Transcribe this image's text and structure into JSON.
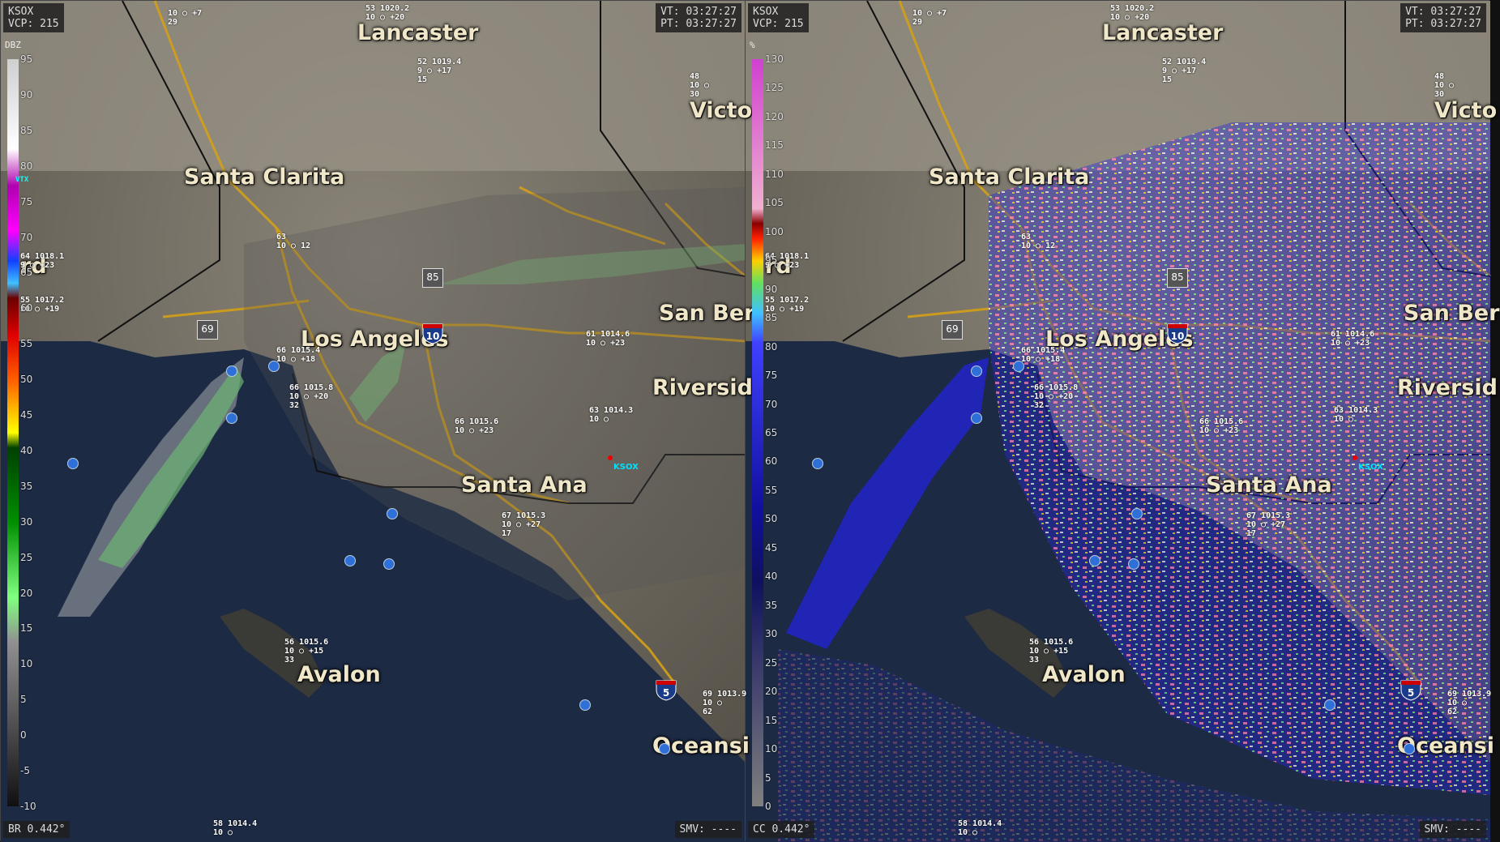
{
  "left_pane": {
    "radar": "KSOX",
    "vcp": "VCP: 215",
    "vt": "VT: 03:27:27",
    "pt": "PT: 03:27:27",
    "product": "BR 0.442°",
    "smv": "SMV: ----",
    "legend_unit": "DBZ",
    "legend_ticks": [
      "95",
      "90",
      "85",
      "80",
      "75",
      "70",
      "65",
      "60",
      "55",
      "50",
      "45",
      "40",
      "35",
      "30",
      "25",
      "20",
      "15",
      "10",
      "5",
      "0",
      "-5",
      "-10"
    ],
    "legend_marker": "VTX"
  },
  "right_pane": {
    "radar": "KSOX",
    "vcp": "VCP: 215",
    "vt": "VT: 03:27:27",
    "pt": "PT: 03:27:27",
    "product": "CC 0.442°",
    "smv": "SMV: ----",
    "legend_unit": "%",
    "legend_ticks": [
      "130",
      "125",
      "120",
      "115",
      "110",
      "105",
      "100",
      "95",
      "90",
      "85",
      "80",
      "75",
      "70",
      "65",
      "60",
      "55",
      "50",
      "45",
      "40",
      "35",
      "30",
      "25",
      "20",
      "15",
      "10",
      "5",
      "0"
    ]
  },
  "cities": {
    "lancaster": "Lancaster",
    "santa_clarita": "Santa Clarita",
    "los_angeles": "Los Angeles",
    "san_bernardino": "San Ber",
    "riverside": "Riversid",
    "santa_ana": "Santa Ana",
    "avalon": "Avalon",
    "victorville": "Victo",
    "oceanside": "Oceansi",
    "oxnard_partial": "rd"
  },
  "site_label": "KSOX",
  "highways": {
    "i10": "10",
    "i5": "5",
    "sr69": "69",
    "sr85": "85"
  },
  "observations": [
    {
      "id": "obs-lancaster",
      "lines": [
        "53 1020.2",
        "10  ○  +20"
      ]
    },
    {
      "id": "obs-palmdale",
      "lines": [
        "52 1019.4",
        "9  ○ +17",
        "15"
      ]
    },
    {
      "id": "obs-top",
      "lines": [
        "10 ○ +7",
        "29"
      ]
    },
    {
      "id": "obs-victorville",
      "lines": [
        "48",
        "10  ○",
        "30"
      ]
    },
    {
      "id": "obs-oxnard",
      "lines": [
        "64 1018.1",
        "9 ○ +23"
      ]
    },
    {
      "id": "obs-camarillo",
      "lines": [
        "55 1017.2",
        "10  ○ +19"
      ]
    },
    {
      "id": "obs-van-nuys",
      "lines": [
        "63",
        "10 ○ 12"
      ]
    },
    {
      "id": "obs-la",
      "lines": [
        "66 1015.4",
        "10 ○ +18"
      ]
    },
    {
      "id": "obs-lax",
      "lines": [
        "66 1015.8",
        "10 ○ +20",
        "32"
      ]
    },
    {
      "id": "obs-ontario",
      "lines": [
        "61 1014.6",
        "10 ○ +23"
      ]
    },
    {
      "id": "obs-riverside",
      "lines": [
        "63 1014.3",
        "10  ○"
      ]
    },
    {
      "id": "obs-fullerton",
      "lines": [
        "66 1015.6",
        "10 ○ +23"
      ]
    },
    {
      "id": "obs-santa-ana",
      "lines": [
        "67 1015.3",
        "10 ○ +27",
        "17"
      ]
    },
    {
      "id": "obs-avalon",
      "lines": [
        "56 1015.6",
        "10 ○ +15",
        "33"
      ]
    },
    {
      "id": "obs-oceanside",
      "lines": [
        "69 1013.9",
        "10  ○",
        "62"
      ]
    },
    {
      "id": "obs-bottom",
      "lines": [
        "58 1014.4",
        "10  ○"
      ]
    }
  ]
}
